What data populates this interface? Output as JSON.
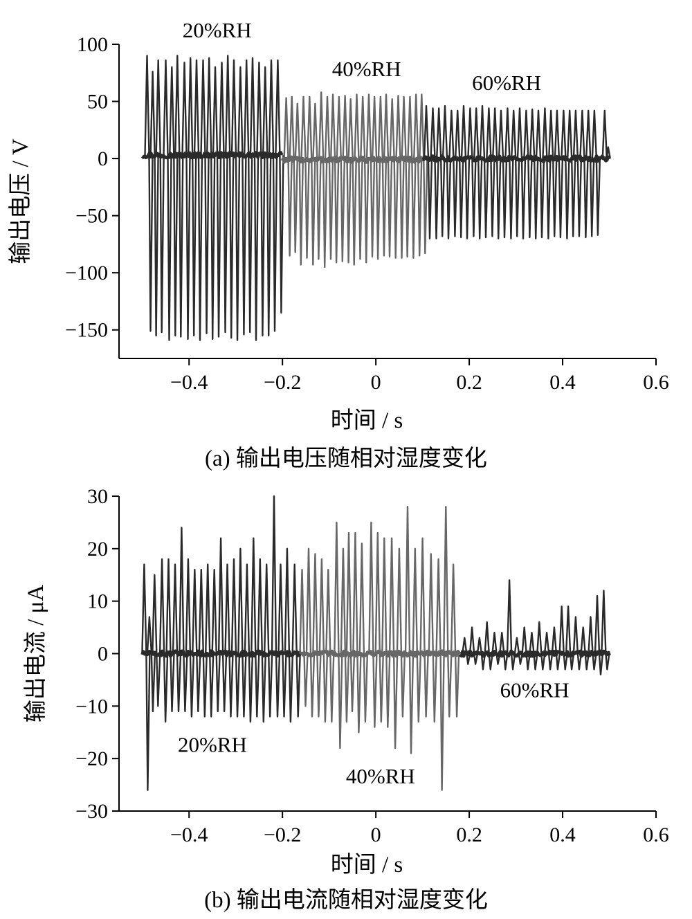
{
  "chart_data": [
    {
      "type": "line",
      "caption": "(a)  输出电压随相对湿度变化",
      "xlabel": "时间 / s",
      "ylabel": "输出电压 / V",
      "xlim": [
        -0.55,
        0.6
      ],
      "ylim": [
        -175,
        100
      ],
      "xticks": [
        -0.4,
        -0.2,
        0,
        0.2,
        0.4,
        0.6
      ],
      "xtick_labels": [
        "−0.4",
        "−0.2",
        "0",
        "0.2",
        "0.4",
        "0.6"
      ],
      "yticks": [
        100,
        50,
        0,
        -50,
        -100,
        -150
      ],
      "ytick_labels": [
        "100",
        "50",
        "0",
        "−50",
        "−100",
        "−150"
      ],
      "grid": false,
      "series": [
        {
          "name": "20%RH",
          "color": "#2a2a2a",
          "t_start": -0.5,
          "t_end": -0.2,
          "baseline": 3,
          "peaks": [
            {
              "t": -0.49,
              "pos": 90,
              "neg": -151
            },
            {
              "t": -0.478,
              "pos": 76,
              "neg": -155
            },
            {
              "t": -0.466,
              "pos": 86,
              "neg": -152
            },
            {
              "t": -0.45,
              "pos": 86,
              "neg": -159
            },
            {
              "t": -0.437,
              "pos": 80,
              "neg": -155
            },
            {
              "t": -0.425,
              "pos": 90,
              "neg": -156
            },
            {
              "t": -0.41,
              "pos": 84,
              "neg": -158
            },
            {
              "t": -0.397,
              "pos": 88,
              "neg": -155
            },
            {
              "t": -0.384,
              "pos": 86,
              "neg": -159
            },
            {
              "t": -0.37,
              "pos": 86,
              "neg": -153
            },
            {
              "t": -0.357,
              "pos": 88,
              "neg": -158
            },
            {
              "t": -0.344,
              "pos": 80,
              "neg": -156
            },
            {
              "t": -0.33,
              "pos": 84,
              "neg": -152
            },
            {
              "t": -0.317,
              "pos": 90,
              "neg": -157
            },
            {
              "t": -0.304,
              "pos": 86,
              "neg": -159
            },
            {
              "t": -0.29,
              "pos": 80,
              "neg": -154
            },
            {
              "t": -0.277,
              "pos": 86,
              "neg": -152
            },
            {
              "t": -0.264,
              "pos": 88,
              "neg": -159
            },
            {
              "t": -0.25,
              "pos": 84,
              "neg": -155
            },
            {
              "t": -0.237,
              "pos": 80,
              "neg": -155
            },
            {
              "t": -0.224,
              "pos": 86,
              "neg": -151
            },
            {
              "t": -0.21,
              "pos": 86,
              "neg": -135
            }
          ]
        },
        {
          "name": "40%RH",
          "color": "#676767",
          "t_start": -0.2,
          "t_end": 0.1,
          "baseline": -1,
          "peaks": [
            {
              "t": -0.192,
              "pos": 53,
              "neg": -85
            },
            {
              "t": -0.18,
              "pos": 54,
              "neg": -82
            },
            {
              "t": -0.168,
              "pos": 48,
              "neg": -93
            },
            {
              "t": -0.155,
              "pos": 54,
              "neg": -87
            },
            {
              "t": -0.142,
              "pos": 54,
              "neg": -93
            },
            {
              "t": -0.13,
              "pos": 48,
              "neg": -88
            },
            {
              "t": -0.117,
              "pos": 58,
              "neg": -95
            },
            {
              "t": -0.104,
              "pos": 54,
              "neg": -88
            },
            {
              "t": -0.092,
              "pos": 56,
              "neg": -91
            },
            {
              "t": -0.079,
              "pos": 54,
              "neg": -90
            },
            {
              "t": -0.066,
              "pos": 55,
              "neg": -91
            },
            {
              "t": -0.054,
              "pos": 52,
              "neg": -93
            },
            {
              "t": -0.041,
              "pos": 56,
              "neg": -88
            },
            {
              "t": -0.028,
              "pos": 54,
              "neg": -91
            },
            {
              "t": -0.015,
              "pos": 56,
              "neg": -86
            },
            {
              "t": -0.003,
              "pos": 54,
              "neg": -88
            },
            {
              "t": 0.01,
              "pos": 54,
              "neg": -85
            },
            {
              "t": 0.022,
              "pos": 56,
              "neg": -86
            },
            {
              "t": 0.035,
              "pos": 52,
              "neg": -87
            },
            {
              "t": 0.048,
              "pos": 55,
              "neg": -87
            },
            {
              "t": 0.06,
              "pos": 54,
              "neg": -86
            },
            {
              "t": 0.073,
              "pos": 54,
              "neg": -87
            },
            {
              "t": 0.086,
              "pos": 56,
              "neg": -85
            },
            {
              "t": 0.098,
              "pos": 56,
              "neg": -83
            }
          ]
        },
        {
          "name": "60%RH",
          "color": "#2a2a2a",
          "t_start": 0.1,
          "t_end": 0.5,
          "baseline": 0,
          "peaks": [
            {
              "t": 0.108,
              "pos": 46,
              "neg": -70
            },
            {
              "t": 0.122,
              "pos": 44,
              "neg": -70
            },
            {
              "t": 0.135,
              "pos": 44,
              "neg": -68
            },
            {
              "t": 0.148,
              "pos": 46,
              "neg": -70
            },
            {
              "t": 0.162,
              "pos": 42,
              "neg": -68
            },
            {
              "t": 0.175,
              "pos": 42,
              "neg": -69
            },
            {
              "t": 0.188,
              "pos": 46,
              "neg": -70
            },
            {
              "t": 0.202,
              "pos": 44,
              "neg": -68
            },
            {
              "t": 0.215,
              "pos": 44,
              "neg": -70
            },
            {
              "t": 0.228,
              "pos": 46,
              "neg": -69
            },
            {
              "t": 0.242,
              "pos": 44,
              "neg": -68
            },
            {
              "t": 0.255,
              "pos": 44,
              "neg": -70
            },
            {
              "t": 0.268,
              "pos": 42,
              "neg": -69
            },
            {
              "t": 0.282,
              "pos": 44,
              "neg": -70
            },
            {
              "t": 0.295,
              "pos": 42,
              "neg": -68
            },
            {
              "t": 0.308,
              "pos": 44,
              "neg": -70
            },
            {
              "t": 0.322,
              "pos": 42,
              "neg": -69
            },
            {
              "t": 0.335,
              "pos": 43,
              "neg": -70
            },
            {
              "t": 0.348,
              "pos": 42,
              "neg": -69
            },
            {
              "t": 0.362,
              "pos": 44,
              "neg": -70
            },
            {
              "t": 0.375,
              "pos": 42,
              "neg": -68
            },
            {
              "t": 0.388,
              "pos": 42,
              "neg": -69
            },
            {
              "t": 0.402,
              "pos": 42,
              "neg": -70
            },
            {
              "t": 0.415,
              "pos": 42,
              "neg": -68
            },
            {
              "t": 0.428,
              "pos": 42,
              "neg": -68
            },
            {
              "t": 0.442,
              "pos": 42,
              "neg": -69
            },
            {
              "t": 0.455,
              "pos": 42,
              "neg": -68
            },
            {
              "t": 0.468,
              "pos": 42,
              "neg": -67
            },
            {
              "t": 0.49,
              "pos": 42,
              "neg": 10
            }
          ]
        }
      ],
      "annotations": [
        {
          "text": "20%RH",
          "x": -0.34,
          "y": 106
        },
        {
          "text": "40%RH",
          "x": -0.02,
          "y": 72
        },
        {
          "text": "60%RH",
          "x": 0.28,
          "y": 60
        }
      ]
    },
    {
      "type": "line",
      "caption": "(b)  输出电流随相对湿度变化",
      "xlabel": "时间 / s",
      "ylabel": "输出电流 / μA",
      "xlim": [
        -0.55,
        0.6
      ],
      "ylim": [
        -30,
        30
      ],
      "xticks": [
        -0.4,
        -0.2,
        0,
        0.2,
        0.4,
        0.6
      ],
      "xtick_labels": [
        "−0.4",
        "−0.2",
        "0",
        "0.2",
        "0.4",
        "0.6"
      ],
      "yticks": [
        30,
        20,
        10,
        0,
        -10,
        -20,
        -30
      ],
      "ytick_labels": [
        "30",
        "20",
        "10",
        "0",
        "−10",
        "−20",
        "−30"
      ],
      "grid": false,
      "series": [
        {
          "name": "20%RH",
          "color": "#2a2a2a",
          "t_start": -0.5,
          "t_end": -0.16,
          "baseline": 0,
          "peaks": [
            {
              "t": -0.496,
              "pos": 17,
              "neg": -26
            },
            {
              "t": -0.485,
              "pos": 7,
              "neg": -11
            },
            {
              "t": -0.474,
              "pos": 15,
              "neg": -10
            },
            {
              "t": -0.458,
              "pos": 18,
              "neg": -13
            },
            {
              "t": -0.444,
              "pos": 18,
              "neg": -11
            },
            {
              "t": -0.43,
              "pos": 17,
              "neg": -11
            },
            {
              "t": -0.416,
              "pos": 24,
              "neg": -11
            },
            {
              "t": -0.402,
              "pos": 18,
              "neg": -12
            },
            {
              "t": -0.388,
              "pos": 16,
              "neg": -11
            },
            {
              "t": -0.374,
              "pos": 16,
              "neg": -12
            },
            {
              "t": -0.36,
              "pos": 17,
              "neg": -12
            },
            {
              "t": -0.346,
              "pos": 16,
              "neg": -11
            },
            {
              "t": -0.332,
              "pos": 22,
              "neg": -11
            },
            {
              "t": -0.318,
              "pos": 17,
              "neg": -12
            },
            {
              "t": -0.304,
              "pos": 18,
              "neg": -12
            },
            {
              "t": -0.29,
              "pos": 20,
              "neg": -12
            },
            {
              "t": -0.276,
              "pos": 17,
              "neg": -13
            },
            {
              "t": -0.262,
              "pos": 22,
              "neg": -12
            },
            {
              "t": -0.248,
              "pos": 18,
              "neg": -13
            },
            {
              "t": -0.234,
              "pos": 17,
              "neg": -12
            },
            {
              "t": -0.218,
              "pos": 30,
              "neg": -12
            },
            {
              "t": -0.204,
              "pos": 17,
              "neg": -12
            },
            {
              "t": -0.19,
              "pos": 20,
              "neg": -13
            },
            {
              "t": -0.174,
              "pos": 17,
              "neg": -12
            }
          ]
        },
        {
          "name": "40%RH",
          "color": "#676767",
          "t_start": -0.16,
          "t_end": 0.18,
          "baseline": 0,
          "peaks": [
            {
              "t": -0.158,
              "pos": 16,
              "neg": -10
            },
            {
              "t": -0.144,
              "pos": 20,
              "neg": -12
            },
            {
              "t": -0.13,
              "pos": 19,
              "neg": -12
            },
            {
              "t": -0.116,
              "pos": 18,
              "neg": -13
            },
            {
              "t": -0.102,
              "pos": 16,
              "neg": -13
            },
            {
              "t": -0.084,
              "pos": 25,
              "neg": -18
            },
            {
              "t": -0.07,
              "pos": 20,
              "neg": -13
            },
            {
              "t": -0.058,
              "pos": 23,
              "neg": -11
            },
            {
              "t": -0.044,
              "pos": 23,
              "neg": -15
            },
            {
              "t": -0.03,
              "pos": 21,
              "neg": -13
            },
            {
              "t": -0.01,
              "pos": 25,
              "neg": -14
            },
            {
              "t": 0.004,
              "pos": 23,
              "neg": -13
            },
            {
              "t": 0.018,
              "pos": 22,
              "neg": -14
            },
            {
              "t": 0.034,
              "pos": 22,
              "neg": -18
            },
            {
              "t": 0.05,
              "pos": 20,
              "neg": -12
            },
            {
              "t": 0.068,
              "pos": 28,
              "neg": -19
            },
            {
              "t": 0.084,
              "pos": 20,
              "neg": -13
            },
            {
              "t": 0.1,
              "pos": 22,
              "neg": -12
            },
            {
              "t": 0.118,
              "pos": 19,
              "neg": -13
            },
            {
              "t": 0.134,
              "pos": 18,
              "neg": -26
            },
            {
              "t": 0.15,
              "pos": 28,
              "neg": -12
            },
            {
              "t": 0.166,
              "pos": 17,
              "neg": -12
            }
          ]
        },
        {
          "name": "60%RH",
          "color": "#2a2a2a",
          "t_start": 0.18,
          "t_end": 0.5,
          "baseline": 0,
          "peaks": [
            {
              "t": 0.19,
              "pos": 3,
              "neg": -2
            },
            {
              "t": 0.206,
              "pos": 5,
              "neg": -2
            },
            {
              "t": 0.222,
              "pos": 3,
              "neg": -3
            },
            {
              "t": 0.238,
              "pos": 6,
              "neg": -3
            },
            {
              "t": 0.254,
              "pos": 4,
              "neg": -2
            },
            {
              "t": 0.27,
              "pos": 4,
              "neg": -3
            },
            {
              "t": 0.286,
              "pos": 14,
              "neg": -3
            },
            {
              "t": 0.302,
              "pos": 3,
              "neg": -2
            },
            {
              "t": 0.318,
              "pos": 5,
              "neg": -3
            },
            {
              "t": 0.334,
              "pos": 4,
              "neg": -3
            },
            {
              "t": 0.35,
              "pos": 6,
              "neg": -3
            },
            {
              "t": 0.366,
              "pos": 4,
              "neg": -3
            },
            {
              "t": 0.382,
              "pos": 5,
              "neg": -3
            },
            {
              "t": 0.398,
              "pos": 9,
              "neg": -3
            },
            {
              "t": 0.412,
              "pos": 9,
              "neg": -3
            },
            {
              "t": 0.428,
              "pos": 7,
              "neg": -3
            },
            {
              "t": 0.444,
              "pos": 5,
              "neg": -3
            },
            {
              "t": 0.46,
              "pos": 7,
              "neg": -3
            },
            {
              "t": 0.474,
              "pos": 11,
              "neg": -4
            },
            {
              "t": 0.488,
              "pos": 12,
              "neg": -3
            }
          ]
        }
      ],
      "annotations": [
        {
          "text": "20%RH",
          "x": -0.35,
          "y": -18.7
        },
        {
          "text": "40%RH",
          "x": 0.01,
          "y": -24.7
        },
        {
          "text": "60%RH",
          "x": 0.34,
          "y": -8.3
        }
      ]
    }
  ]
}
